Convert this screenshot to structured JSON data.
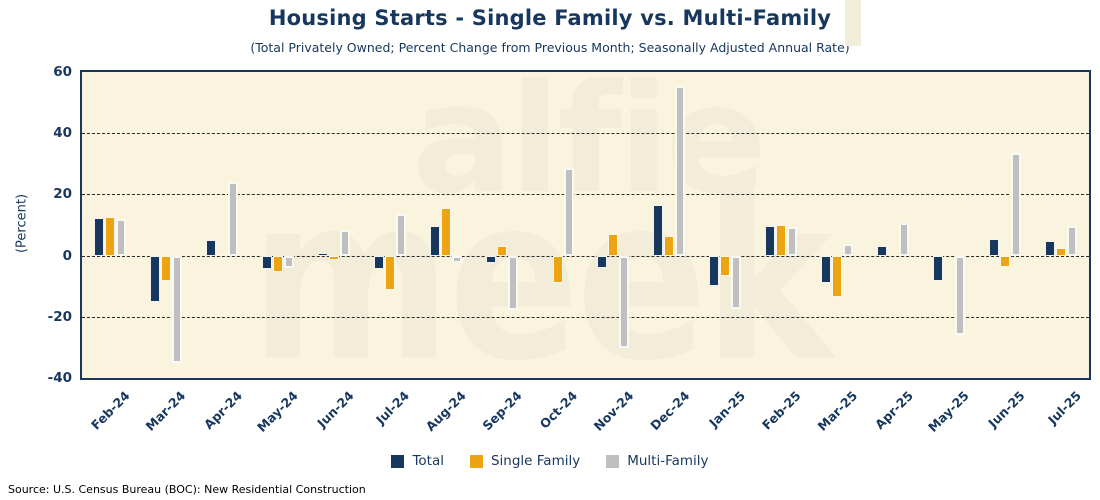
{
  "title": "Housing Starts - Single Family vs. Multi-Family",
  "subtitle": "(Total Privately Owned; Percent Change from Previous Month; Seasonally Adjusted Annual Rate)",
  "source": "Source: U.S. Census Bureau (BOC): New Residential Construction",
  "watermark": {
    "line1": "alfie",
    "line2": "meek"
  },
  "colors": {
    "total": "#17375E",
    "single_family": "#EDA413",
    "multi_family": "#BFBFBF",
    "plot_bg": "#FAF4DF",
    "axis_text": "#17375E",
    "gridline": "#2a2a2a"
  },
  "chart_data": {
    "type": "bar",
    "title": "Housing Starts - Single Family vs. Multi-Family",
    "subtitle": "(Total Privately Owned; Percent Change from Previous Month; Seasonally Adjusted Annual Rate)",
    "ylabel": "(Percent)",
    "xlabel": "",
    "ylim": [
      -40,
      60
    ],
    "yticks": [
      60,
      40,
      20,
      0,
      -20,
      -40
    ],
    "gridlines_at": [
      40,
      20,
      0,
      -20
    ],
    "grid": "horizontal dashed",
    "legend_position": "bottom",
    "categories": [
      "Feb-24",
      "Mar-24",
      "Apr-24",
      "May-24",
      "Jun-24",
      "Jul-24",
      "Aug-24",
      "Sep-24",
      "Oct-24",
      "Nov-24",
      "Dec-24",
      "Jan-25",
      "Feb-25",
      "Mar-25",
      "Apr-25",
      "May-25",
      "Jun-25",
      "Jul-25"
    ],
    "series": [
      {
        "name": "Total",
        "color_key": "total",
        "values": [
          12.2,
          -15.2,
          5.1,
          -4.4,
          1.0,
          -4.4,
          9.8,
          -2.5,
          0,
          -4.2,
          16.6,
          -9.8,
          9.7,
          -8.8,
          3.1,
          -8.4,
          5.4,
          4.9
        ]
      },
      {
        "name": "Single Family",
        "color_key": "single_family",
        "values": [
          12.5,
          -8.4,
          0.4,
          -5.2,
          -1.6,
          -11.1,
          15.7,
          3.2,
          -8.8,
          7.0,
          6.4,
          -6.6,
          9.9,
          -13.5,
          0,
          0,
          -3.6,
          2.6
        ]
      },
      {
        "name": "Multi-Family",
        "color_key": "multi_family",
        "values": [
          11.9,
          -35.1,
          24.0,
          -3.9,
          8.3,
          13.7,
          -2.5,
          -17.9,
          28.6,
          -30.1,
          55.4,
          -17.6,
          9.4,
          3.8,
          10.5,
          -26.1,
          33.5,
          9.7
        ]
      }
    ]
  }
}
